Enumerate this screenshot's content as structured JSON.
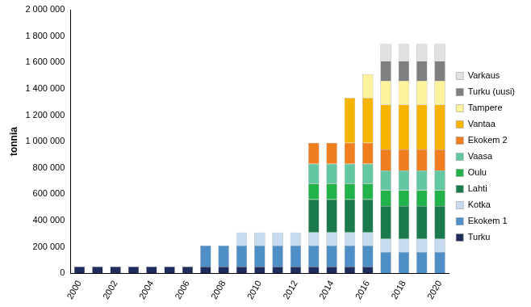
{
  "chart_data": {
    "type": "bar",
    "stacked": true,
    "grid": false,
    "legend": "right",
    "y_label": "tonnia",
    "categories": [
      "2000",
      null,
      "2002",
      null,
      "2004",
      null,
      "2006",
      null,
      "2008",
      null,
      "2010",
      null,
      "2012",
      null,
      "2014",
      null,
      "2016",
      null,
      "2018",
      null,
      "2020"
    ],
    "ylim": [
      0,
      2000000
    ],
    "yticks": [
      0,
      {
        "value": 200000,
        "label": "200 000"
      },
      {
        "value": 400000,
        "label": "400 000"
      },
      {
        "value": 600000,
        "label": "600 000"
      },
      {
        "value": 800000,
        "label": "800 000"
      },
      {
        "value": 1000000,
        "label": "1 000 000"
      },
      {
        "value": 1200000,
        "label": "1 200 000"
      },
      {
        "value": 1400000,
        "label": "1 400 000"
      },
      {
        "value": 1600000,
        "label": "1 600 000"
      },
      {
        "value": 1800000,
        "label": "1 800 000"
      },
      {
        "value": 2000000,
        "label": "2 000 000"
      }
    ],
    "series": [
      {
        "name": "Turku",
        "color": "#1f2d5c",
        "values": [
          50000,
          50000,
          50000,
          50000,
          50000,
          50000,
          50000,
          50000,
          50000,
          50000,
          50000,
          50000,
          50000,
          50000,
          50000,
          50000,
          50000,
          0,
          0,
          0,
          0
        ]
      },
      {
        "name": "Ekokem 1",
        "color": "#4f8fc8",
        "values": [
          0,
          0,
          0,
          0,
          0,
          0,
          0,
          160000,
          160000,
          160000,
          160000,
          160000,
          160000,
          160000,
          160000,
          160000,
          160000,
          160000,
          160000,
          160000,
          160000
        ]
      },
      {
        "name": "Kotka",
        "color": "#c6daf0",
        "values": [
          0,
          0,
          0,
          0,
          0,
          0,
          0,
          0,
          0,
          100000,
          100000,
          100000,
          100000,
          100000,
          100000,
          100000,
          100000,
          100000,
          100000,
          100000,
          100000
        ]
      },
      {
        "name": "Lahti",
        "color": "#1b7a4c",
        "values": [
          0,
          0,
          0,
          0,
          0,
          0,
          0,
          0,
          0,
          0,
          0,
          0,
          0,
          250000,
          250000,
          250000,
          250000,
          250000,
          250000,
          250000,
          250000
        ]
      },
      {
        "name": "Oulu",
        "color": "#22b24a",
        "values": [
          0,
          0,
          0,
          0,
          0,
          0,
          0,
          0,
          0,
          0,
          0,
          0,
          0,
          120000,
          120000,
          120000,
          120000,
          120000,
          120000,
          120000,
          120000
        ]
      },
      {
        "name": "Vaasa",
        "color": "#63c8a2",
        "values": [
          0,
          0,
          0,
          0,
          0,
          0,
          0,
          0,
          0,
          0,
          0,
          0,
          0,
          150000,
          150000,
          150000,
          150000,
          150000,
          150000,
          150000,
          150000
        ]
      },
      {
        "name": "Ekokem 2",
        "color": "#f07e1e",
        "values": [
          0,
          0,
          0,
          0,
          0,
          0,
          0,
          0,
          0,
          0,
          0,
          0,
          0,
          160000,
          160000,
          160000,
          160000,
          160000,
          160000,
          160000,
          160000
        ]
      },
      {
        "name": "Vantaa",
        "color": "#f6b400",
        "values": [
          0,
          0,
          0,
          0,
          0,
          0,
          0,
          0,
          0,
          0,
          0,
          0,
          0,
          0,
          0,
          340000,
          340000,
          340000,
          340000,
          340000,
          340000
        ]
      },
      {
        "name": "Tampere",
        "color": "#fff29c",
        "values": [
          0,
          0,
          0,
          0,
          0,
          0,
          0,
          0,
          0,
          0,
          0,
          0,
          0,
          0,
          0,
          0,
          180000,
          180000,
          180000,
          180000,
          180000
        ]
      },
      {
        "name": "Turku (uusi)",
        "color": "#7f7f7f",
        "values": [
          0,
          0,
          0,
          0,
          0,
          0,
          0,
          0,
          0,
          0,
          0,
          0,
          0,
          0,
          0,
          0,
          0,
          150000,
          150000,
          150000,
          150000
        ]
      },
      {
        "name": "Varkaus",
        "color": "#e1e1e1",
        "values": [
          0,
          0,
          0,
          0,
          0,
          0,
          0,
          0,
          0,
          0,
          0,
          0,
          0,
          0,
          0,
          0,
          0,
          130000,
          130000,
          130000,
          130000
        ]
      }
    ]
  }
}
